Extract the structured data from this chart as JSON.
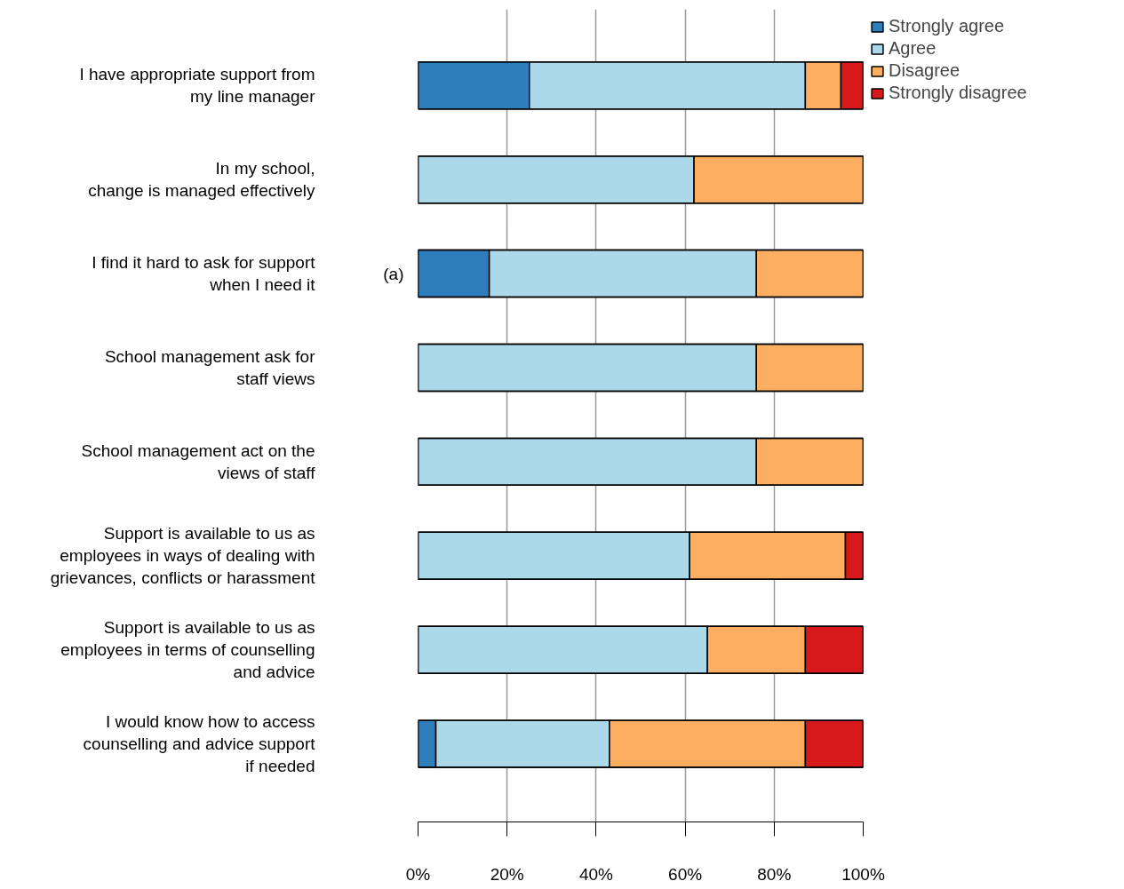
{
  "chart_data": {
    "type": "bar",
    "orientation": "horizontal",
    "stacked": true,
    "categories": [
      "I have appropriate support from\nmy line manager",
      "In my school,\nchange is managed effectively",
      "I find it hard to ask for support\nwhen I need it",
      "School management ask for\nstaff views",
      "School management act on the\nviews of staff",
      "Support is available to us as\nemployees in ways of dealing with\ngrievances, conflicts or harassment",
      "Support is available to us as\nemployees in terms of counselling\nand advice",
      "I would know how to access\ncounselling and advice support\nif needed"
    ],
    "series": [
      {
        "name": "Strongly agree",
        "color": "#2e7ebc",
        "values": [
          25,
          0,
          16,
          0,
          0,
          0,
          0,
          4
        ]
      },
      {
        "name": "Agree",
        "color": "#abd9e9",
        "values": [
          62,
          62,
          60,
          76,
          76,
          61,
          65,
          39
        ]
      },
      {
        "name": "Disagree",
        "color": "#fdae61",
        "values": [
          8,
          38,
          24,
          24,
          24,
          35,
          22,
          44
        ]
      },
      {
        "name": "Strongly disagree",
        "color": "#d7191c",
        "values": [
          5,
          0,
          0,
          0,
          0,
          4,
          13,
          13
        ]
      }
    ],
    "xlim": [
      0,
      100
    ],
    "xticks": [
      {
        "value": 0,
        "label": "0%"
      },
      {
        "value": 20,
        "label": "20%"
      },
      {
        "value": 40,
        "label": "40%"
      },
      {
        "value": 60,
        "label": "60%"
      },
      {
        "value": 80,
        "label": "80%"
      },
      {
        "value": 100,
        "label": "100%"
      }
    ],
    "grid": "x",
    "legend": "top right",
    "annotations": [
      "(a)"
    ]
  }
}
